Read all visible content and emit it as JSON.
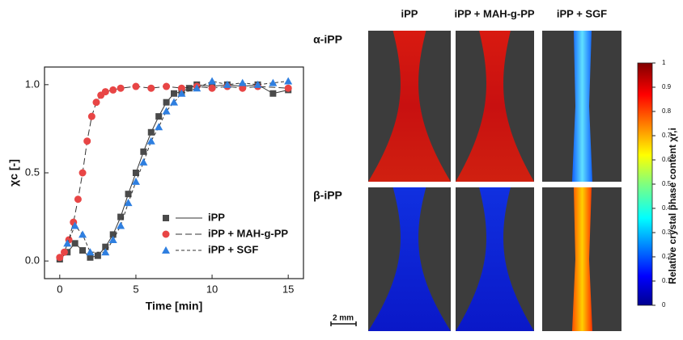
{
  "chart_data": [
    {
      "type": "scatter",
      "xlabel": "Time [min]",
      "ylabel": "χc [-]",
      "xlim": [
        -1,
        16
      ],
      "ylim": [
        -0.1,
        1.1
      ],
      "xticks": [
        0,
        5,
        10,
        15
      ],
      "yticks": [
        {
          "value": 0,
          "label": "0.0"
        },
        {
          "value": 0.5,
          "label": "0.5"
        },
        {
          "value": 1,
          "label": "1.0"
        }
      ],
      "legend": "lower right",
      "series": [
        {
          "name": "iPP",
          "color": "#4a4a4a",
          "marker": "square",
          "line": "solid",
          "x": [
            0,
            0.5,
            1,
            1.5,
            2,
            2.5,
            3,
            3.5,
            4,
            4.5,
            5,
            5.5,
            6,
            6.5,
            7,
            7.5,
            8,
            8.5,
            9,
            10,
            11,
            12,
            13,
            14,
            15
          ],
          "values": [
            0.01,
            0.05,
            0.1,
            0.06,
            0.02,
            0.03,
            0.08,
            0.15,
            0.25,
            0.38,
            0.5,
            0.62,
            0.73,
            0.82,
            0.9,
            0.95,
            0.96,
            0.98,
            1.0,
            0.99,
            1.0,
            0.99,
            1.0,
            0.95,
            0.97
          ]
        },
        {
          "name": "iPP + MAH-g-PP",
          "color": "#e84545",
          "marker": "circle",
          "line": "longdash",
          "x": [
            0,
            0.3,
            0.6,
            0.9,
            1.2,
            1.5,
            1.8,
            2.1,
            2.4,
            2.7,
            3,
            3.5,
            4,
            5,
            6,
            7,
            8,
            9,
            10,
            11,
            12,
            13,
            15
          ],
          "values": [
            0.02,
            0.05,
            0.12,
            0.22,
            0.35,
            0.5,
            0.68,
            0.82,
            0.9,
            0.94,
            0.96,
            0.97,
            0.98,
            0.99,
            0.98,
            0.99,
            0.98,
            0.99,
            0.98,
            0.99,
            0.98,
            0.99,
            0.98
          ]
        },
        {
          "name": "iPP + SGF",
          "color": "#2f7fe0",
          "marker": "triangle",
          "line": "dash",
          "x": [
            0.5,
            1,
            1.5,
            2,
            3,
            3.5,
            4,
            4.5,
            5,
            5.5,
            6,
            6.5,
            7,
            7.5,
            8,
            9,
            10,
            11,
            12,
            13,
            14,
            15
          ],
          "values": [
            0.1,
            0.2,
            0.15,
            0.05,
            0.05,
            0.12,
            0.2,
            0.33,
            0.45,
            0.56,
            0.68,
            0.76,
            0.85,
            0.9,
            0.95,
            0.98,
            1.02,
            1.0,
            1.01,
            1.0,
            1.01,
            1.02
          ]
        }
      ]
    },
    {
      "type": "colorbar",
      "ylabel": "Relative crystal phase content χr,i",
      "ylim": [
        0,
        1
      ],
      "yticks": [
        0,
        0.1,
        0.2,
        0.3,
        0.4,
        0.5,
        0.6,
        0.7,
        0.8,
        0.9,
        1
      ]
    }
  ],
  "panels": {
    "columns": [
      "iPP",
      "iPP + MAH-g-PP",
      "iPP + SGF"
    ],
    "rows": [
      "α-iPP",
      "β-iPP"
    ],
    "scale_bar": "2 mm"
  }
}
